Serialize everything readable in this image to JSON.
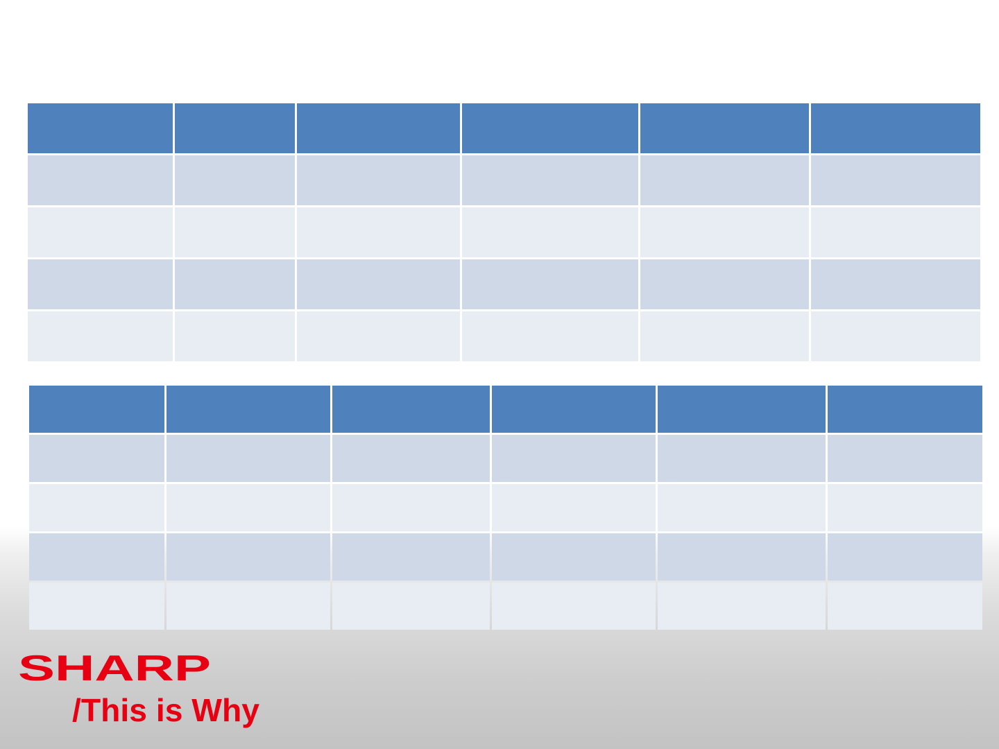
{
  "brand": {
    "logo_text": "SHARP",
    "tagline": "/This is Why",
    "color": "#e60012"
  },
  "colors": {
    "header": "#4f81bd",
    "row_odd": "#cfd8e6",
    "row_even": "#e8ecf3"
  },
  "table_top": {
    "rows": [
      [
        "",
        "",
        "",
        "",
        "",
        ""
      ],
      [
        "",
        "",
        "",
        "",
        "",
        ""
      ],
      [
        "",
        "",
        "",
        "",
        "",
        ""
      ],
      [
        "",
        "",
        "",
        "",
        "",
        ""
      ],
      [
        "",
        "",
        "",
        "",
        "",
        ""
      ]
    ]
  },
  "table_bottom": {
    "rows": [
      [
        "",
        "",
        "",
        "",
        "",
        ""
      ],
      [
        "",
        "",
        "",
        "",
        "",
        ""
      ],
      [
        "",
        "",
        "",
        "",
        "",
        ""
      ],
      [
        "",
        "",
        "",
        "",
        "",
        ""
      ],
      [
        "",
        "",
        "",
        "",
        "",
        ""
      ]
    ]
  }
}
